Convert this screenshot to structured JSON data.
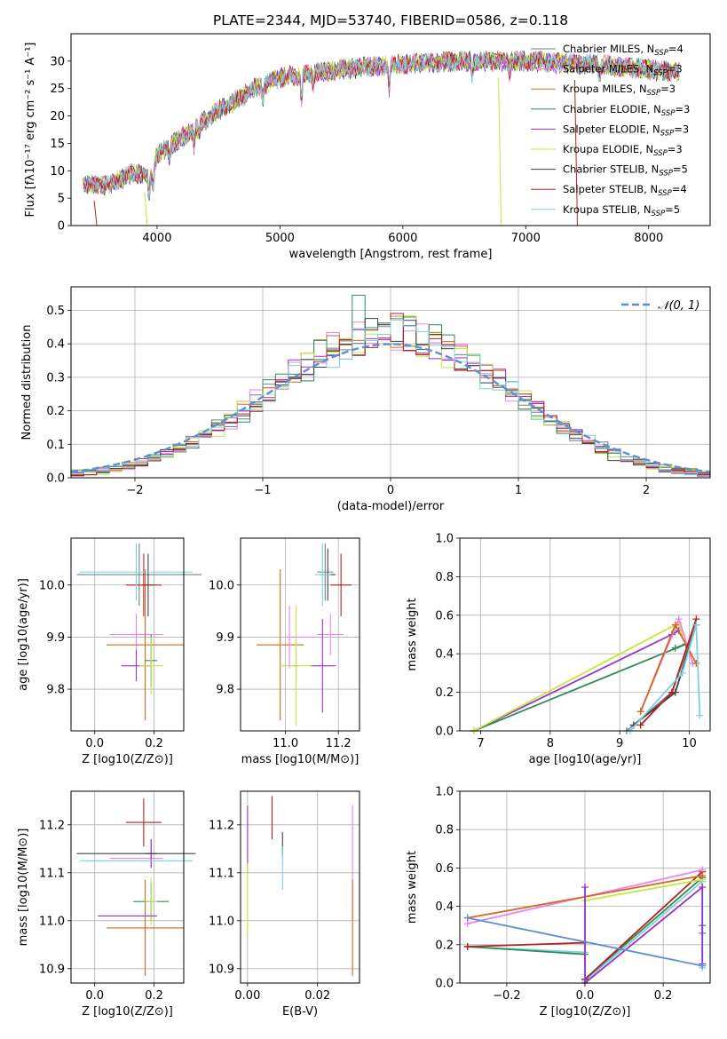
{
  "figure_title": "PLATE=2344, MJD=53740, FIBERID=0586, z=0.118",
  "models": [
    {
      "name": "Chabrier MILES",
      "n": "4",
      "color": "#708090"
    },
    {
      "name": "Salpeter MILES",
      "n": "3",
      "color": "#ee82ee"
    },
    {
      "name": "Kroupa MILES",
      "n": "3",
      "color": "#d2691e"
    },
    {
      "name": "Chabrier ELODIE",
      "n": "3",
      "color": "#2e8b57"
    },
    {
      "name": "Salpeter ELODIE",
      "n": "3",
      "color": "#9932cc"
    },
    {
      "name": "Kroupa ELODIE",
      "n": "3",
      "color": "#c8e63c"
    },
    {
      "name": "Chabrier STELIB",
      "n": "5",
      "color": "#404040"
    },
    {
      "name": "Salpeter STELIB",
      "n": "4",
      "color": "#b22222"
    },
    {
      "name": "Kroupa STELIB",
      "n": "5",
      "color": "#7fd0d8"
    }
  ],
  "nssp_sub": "SSP",
  "chart_data": [
    {
      "id": "spectrum",
      "type": "line",
      "xlabel": "wavelength [Angstrom, rest frame]",
      "ylabel": "Flux [fλ10⁻¹⁷ erg cm⁻² s⁻¹ A⁻¹]",
      "xlim": [
        3300,
        8500
      ],
      "ylim": [
        0,
        35
      ],
      "xticks": [
        4000,
        5000,
        6000,
        7000,
        8000
      ],
      "yticks": [
        0,
        5,
        10,
        15,
        20,
        25,
        30
      ],
      "continuum_x": [
        3400,
        3600,
        3800,
        3950,
        4000,
        4200,
        4500,
        4800,
        5000,
        5500,
        6000,
        6500,
        7000,
        7500,
        8000,
        8250
      ],
      "continuum_y": [
        7.5,
        7.5,
        9.5,
        9,
        13,
        16,
        21,
        25,
        27,
        28.5,
        29.5,
        30,
        30,
        29.5,
        28.5,
        28
      ],
      "absorption_features": [
        {
          "x": 3934,
          "depth": 4
        },
        {
          "x": 3969,
          "depth": 3
        },
        {
          "x": 4101,
          "depth": 2.5
        },
        {
          "x": 4300,
          "depth": 3
        },
        {
          "x": 4340,
          "depth": 2
        },
        {
          "x": 4861,
          "depth": 2.5
        },
        {
          "x": 5175,
          "depth": 5
        },
        {
          "x": 5270,
          "depth": 2
        },
        {
          "x": 5890,
          "depth": 4
        },
        {
          "x": 6563,
          "depth": 3
        },
        {
          "x": 6868,
          "depth": 2
        },
        {
          "x": 7600,
          "depth": 2
        }
      ],
      "dropouts": [
        {
          "x": 3510,
          "color": "#b22222"
        },
        {
          "x": 3920,
          "color": "#c8e63c"
        },
        {
          "x": 6800,
          "color": "#c8e63c"
        },
        {
          "x": 7420,
          "color": "#b22222"
        }
      ],
      "legend_loc": "right"
    },
    {
      "id": "residuals",
      "type": "histogram",
      "xlabel": "(data-model)/error",
      "ylabel": "Normed distribution",
      "xlim": [
        -2.5,
        2.5
      ],
      "ylim": [
        0,
        0.57
      ],
      "xticks": [
        -2,
        -1,
        0,
        1,
        2
      ],
      "yticks": [
        0,
        0.1,
        0.2,
        0.3,
        0.4,
        0.5
      ],
      "grid": true,
      "legend_loc": "top-right",
      "reference_curve": {
        "label": "𝒩(0, 1)",
        "mean": 0,
        "sigma": 1,
        "color": "#5b8fd6"
      },
      "bin_width": 0.1,
      "bin_start": -2.5,
      "approx_shape": "normal, mean ~0, sigma ~0.92, peak ~0.43; individual bins scatter up to 0.55"
    },
    {
      "id": "age_vs_Z",
      "type": "errorbar",
      "xlabel": "Z [log10(Z/Z⊙)]",
      "ylabel": "age  [log10(age/yr)]",
      "xlim": [
        -0.08,
        0.3
      ],
      "ylim": [
        9.72,
        10.09
      ],
      "xticks": [
        0.0,
        0.2
      ],
      "yticks": [
        9.8,
        9.9,
        10.0
      ],
      "grid": true,
      "points": [
        {
          "model": 0,
          "x": 0.15,
          "y": 10.02,
          "xerr": 0.21,
          "yerr": 0.06
        },
        {
          "model": 1,
          "x": 0.14,
          "y": 9.905,
          "xerr": 0.09,
          "yerr": 0.04
        },
        {
          "model": 2,
          "x": 0.17,
          "y": 9.885,
          "xerr": 0.13,
          "yerr": 0.145
        },
        {
          "model": 3,
          "x": 0.19,
          "y": 9.855,
          "xerr": 0.02,
          "yerr": 0.05
        },
        {
          "model": 4,
          "x": 0.14,
          "y": 9.845,
          "xerr": 0.05,
          "yerr": 0.03
        },
        {
          "model": 5,
          "x": 0.19,
          "y": 9.845,
          "xerr": 0.04,
          "yerr": 0.055
        },
        {
          "model": 6,
          "x": 0.18,
          "y": 10.0,
          "xerr": 0.02,
          "yerr": 0.06
        },
        {
          "model": 7,
          "x": 0.165,
          "y": 10.0,
          "xerr": 0.06,
          "yerr": 0.06
        },
        {
          "model": 8,
          "x": 0.14,
          "y": 10.025,
          "xerr": 0.19,
          "yerr": 0.055
        }
      ]
    },
    {
      "id": "age_vs_mass",
      "type": "errorbar",
      "xlabel": "mass [log10(M/M⊙)]",
      "ylabel": "",
      "xlim": [
        10.83,
        11.28
      ],
      "ylim": [
        9.72,
        10.09
      ],
      "xticks": [
        11.0,
        11.2
      ],
      "yticks": [
        9.8,
        9.9,
        10.0
      ],
      "grid": true,
      "points": [
        {
          "model": 0,
          "x": 11.15,
          "y": 10.025,
          "xerr": 0.03,
          "yerr": 0.055
        },
        {
          "model": 1,
          "x": 11.17,
          "y": 9.905,
          "xerr": 0.05,
          "yerr": 0.04
        },
        {
          "model": 2,
          "x": 10.98,
          "y": 9.885,
          "xerr": 0.09,
          "yerr": 0.145
        },
        {
          "model": 3,
          "x": 11.04,
          "y": 9.845,
          "xerr": 0.01,
          "yerr": 0.03
        },
        {
          "model": 4,
          "x": 11.14,
          "y": 9.845,
          "xerr": 0.05,
          "yerr": 0.09
        },
        {
          "model": 5,
          "x": 11.04,
          "y": 9.845,
          "xerr": 0.06,
          "yerr": 0.115
        },
        {
          "model": 6,
          "x": 11.16,
          "y": 10.02,
          "xerr": 0.03,
          "yerr": 0.05
        },
        {
          "model": 7,
          "x": 11.21,
          "y": 10.0,
          "xerr": 0.04,
          "yerr": 0.06
        },
        {
          "model": 8,
          "x": 11.14,
          "y": 10.02,
          "xerr": 0.03,
          "yerr": 0.06
        },
        {
          "model": 1,
          "x": 11.06,
          "y": 9.9,
          "xerr": 0.06,
          "yerr": 0.0
        },
        {
          "model": 1,
          "x": 11.015,
          "y": 9.9,
          "xerr": 0.0,
          "yerr": 0.06
        }
      ]
    },
    {
      "id": "mw_vs_age",
      "type": "line",
      "xlabel": "age  [log10(age/yr)]",
      "ylabel": "mass weight",
      "xlim": [
        6.7,
        10.3
      ],
      "ylim": [
        0,
        1.0
      ],
      "xticks": [
        7,
        8,
        9,
        10
      ],
      "yticks": [
        0.0,
        0.2,
        0.4,
        0.6,
        0.8,
        1.0
      ],
      "grid": true,
      "series": [
        {
          "model": 3,
          "x": [
            6.9,
            9.95,
            9.8
          ],
          "y": [
            0.0,
            0.45,
            0.43
          ]
        },
        {
          "model": 4,
          "x": [
            6.9,
            9.75,
            9.85
          ],
          "y": [
            0.0,
            0.5,
            0.52
          ]
        },
        {
          "model": 5,
          "x": [
            6.9,
            9.85,
            9.9
          ],
          "y": [
            0.0,
            0.56,
            0.5
          ]
        },
        {
          "model": 1,
          "x": [
            9.3,
            9.85,
            10.05
          ],
          "y": [
            0.1,
            0.58,
            0.35
          ]
        },
        {
          "model": 2,
          "x": [
            9.3,
            9.8,
            10.1
          ],
          "y": [
            0.1,
            0.55,
            0.35
          ]
        },
        {
          "model": 0,
          "x": [
            9.1,
            9.75,
            10.1
          ],
          "y": [
            0.0,
            0.2,
            0.55
          ]
        },
        {
          "model": 6,
          "x": [
            9.2,
            9.8,
            10.1
          ],
          "y": [
            0.03,
            0.2,
            0.55
          ]
        },
        {
          "model": 7,
          "x": [
            9.3,
            9.75,
            10.1
          ],
          "y": [
            0.03,
            0.2,
            0.58
          ]
        },
        {
          "model": 8,
          "x": [
            9.15,
            9.9,
            10.1,
            10.15
          ],
          "y": [
            0.0,
            0.3,
            0.55,
            0.08
          ]
        }
      ]
    },
    {
      "id": "mass_vs_Z",
      "type": "errorbar",
      "xlabel": "Z [log10(Z/Z⊙)]",
      "ylabel": "mass [log10(M/M⊙)]",
      "xlim": [
        -0.08,
        0.3
      ],
      "ylim": [
        10.87,
        11.27
      ],
      "xticks": [
        0.0,
        0.2
      ],
      "yticks": [
        10.9,
        11.0,
        11.1,
        11.2
      ],
      "grid": true,
      "points": [
        {
          "model": 0,
          "x": 0.19,
          "y": 11.14,
          "xerr": 0.02,
          "yerr": 0.03
        },
        {
          "model": 1,
          "x": 0.14,
          "y": 11.13,
          "xerr": 0.09,
          "yerr": 0.0
        },
        {
          "model": 2,
          "x": 0.17,
          "y": 10.985,
          "xerr": 0.13,
          "yerr": 0.1
        },
        {
          "model": 3,
          "x": 0.19,
          "y": 11.04,
          "xerr": 0.06,
          "yerr": 0.04
        },
        {
          "model": 4,
          "x": 0.19,
          "y": 11.14,
          "xerr": 0.02,
          "yerr": 0.03
        },
        {
          "model": 5,
          "x": 0.19,
          "y": 11.04,
          "xerr": 0.02,
          "yerr": 0.05
        },
        {
          "model": 6,
          "x": 0.14,
          "y": 11.14,
          "xerr": 0.2,
          "yerr": 0.0
        },
        {
          "model": 7,
          "x": 0.165,
          "y": 11.205,
          "xerr": 0.06,
          "yerr": 0.05
        },
        {
          "model": 8,
          "x": 0.14,
          "y": 11.125,
          "xerr": 0.19,
          "yerr": 0.0
        },
        {
          "model": 4,
          "x": 0.11,
          "y": 11.01,
          "xerr": 0.1,
          "yerr": 0.0
        }
      ]
    },
    {
      "id": "mass_vs_ebv",
      "type": "errorbar",
      "xlabel": "E(B-V)",
      "ylabel": "",
      "xlim": [
        -0.002,
        0.032
      ],
      "ylim": [
        10.87,
        11.27
      ],
      "xticks": [
        0.0,
        0.02
      ],
      "yticks": [
        10.9,
        11.0,
        11.1,
        11.2
      ],
      "grid": true,
      "points": [
        {
          "model": 4,
          "x": 0.0,
          "y": 11.17,
          "xerr": 0.0,
          "yerr": 0.07
        },
        {
          "model": 5,
          "x": 0.0,
          "y": 11.045,
          "xerr": 0.0,
          "yerr": 0.075
        },
        {
          "model": 7,
          "x": 0.007,
          "y": 11.215,
          "xerr": 0.0,
          "yerr": 0.045
        },
        {
          "model": 6,
          "x": 0.01,
          "y": 11.16,
          "xerr": 0.0,
          "yerr": 0.025
        },
        {
          "model": 8,
          "x": 0.01,
          "y": 11.11,
          "xerr": 0.0,
          "yerr": 0.045
        },
        {
          "model": 1,
          "x": 0.03,
          "y": 11.12,
          "xerr": 0.0,
          "yerr": 0.12
        },
        {
          "model": 2,
          "x": 0.03,
          "y": 10.985,
          "xerr": 0.0,
          "yerr": 0.1
        }
      ]
    },
    {
      "id": "mw_vs_Z",
      "type": "line",
      "xlabel": "Z [log10(Z/Z⊙)]",
      "ylabel": "mass weight",
      "xlim": [
        -0.32,
        0.32
      ],
      "ylim": [
        0,
        1.0
      ],
      "xticks": [
        -0.2,
        0.0,
        0.2
      ],
      "yticks": [
        0.0,
        0.2,
        0.4,
        0.6,
        0.8,
        1.0
      ],
      "grid": true,
      "series": [
        {
          "model": 8,
          "x": [
            -0.3,
            0.0,
            0.0,
            0.3,
            0.3
          ],
          "y": [
            0.19,
            0.16,
            0.01,
            0.53,
            0.08
          ]
        },
        {
          "model": 3,
          "x": [
            -0.3,
            0.0,
            0.0,
            0.3
          ],
          "y": [
            0.19,
            0.15,
            0.02,
            0.55
          ]
        },
        {
          "model": 7,
          "x": [
            -0.3,
            0.0,
            0.0,
            0.3
          ],
          "y": [
            0.19,
            0.21,
            0.02,
            0.58
          ]
        },
        {
          "model": 5,
          "x": [
            0.0,
            0.0,
            0.3
          ],
          "y": [
            0.0,
            0.43,
            0.54
          ]
        },
        {
          "model": 0,
          "x": [
            0.3,
            0.3
          ],
          "y": [
            0.3,
            0.26
          ]
        },
        {
          "model": 1,
          "x": [
            -0.3,
            0.3
          ],
          "y": [
            0.31,
            0.59
          ]
        },
        {
          "model": 2,
          "x": [
            -0.3,
            0.3
          ],
          "y": [
            0.34,
            0.56
          ]
        },
        {
          "model": 4,
          "x": [
            0.0,
            0.0,
            0.3,
            0.3
          ],
          "y": [
            0.5,
            0.0,
            0.5,
            0.1
          ]
        },
        {
          "model": 6,
          "x": [
            -0.3,
            0.3
          ],
          "y": [
            0.34,
            0.09
          ],
          "color_override": "#5b8fd6"
        }
      ]
    }
  ]
}
